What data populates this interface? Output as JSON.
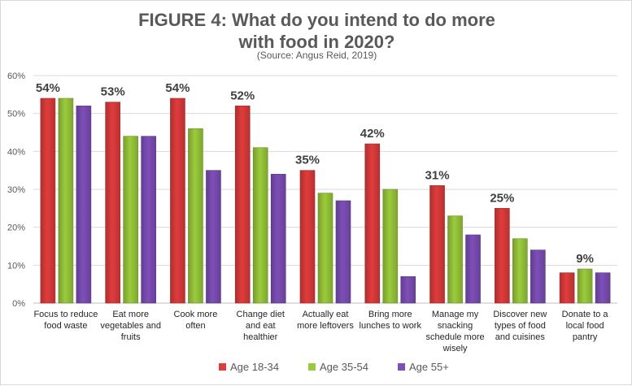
{
  "chart_data": {
    "type": "bar",
    "title_line1": "FIGURE 4: What do you intend to do more",
    "title_line2": "with food in 2020?",
    "subtitle": "(Source: Angus Reid, 2019)",
    "ylim": [
      0,
      60
    ],
    "yticks": [
      "0%",
      "10%",
      "20%",
      "30%",
      "40%",
      "50%",
      "60%"
    ],
    "grid": true,
    "legend_position": "bottom",
    "categories": [
      [
        "Focus to reduce",
        "food waste"
      ],
      [
        "Eat more",
        "vegetables and",
        "fruits"
      ],
      [
        "Cook more",
        "often"
      ],
      [
        "Change diet",
        "and eat",
        "healthier"
      ],
      [
        "Actually eat",
        "more leftovers"
      ],
      [
        "Bring more",
        "lunches to work"
      ],
      [
        "Manage my",
        "snacking",
        "schedule more",
        "wisely"
      ],
      [
        "Discover new",
        "types of food",
        "and cuisines"
      ],
      [
        "Donate to a",
        "local food",
        "pantry"
      ]
    ],
    "series": [
      {
        "name": "Age 18-34",
        "color": "#e03c3c",
        "values": [
          54,
          53,
          54,
          52,
          35,
          42,
          31,
          25,
          8
        ]
      },
      {
        "name": "Age 35-54",
        "color": "#9bcb3c",
        "values": [
          54,
          44,
          46,
          41,
          29,
          30,
          23,
          17,
          9
        ]
      },
      {
        "name": "Age 55+",
        "color": "#7e4fb8",
        "values": [
          52,
          44,
          35,
          34,
          27,
          7,
          18,
          14,
          8
        ]
      }
    ],
    "data_labels": [
      "54%",
      "53%",
      "54%",
      "52%",
      "35%",
      "42%",
      "31%",
      "25%",
      "9%"
    ]
  }
}
